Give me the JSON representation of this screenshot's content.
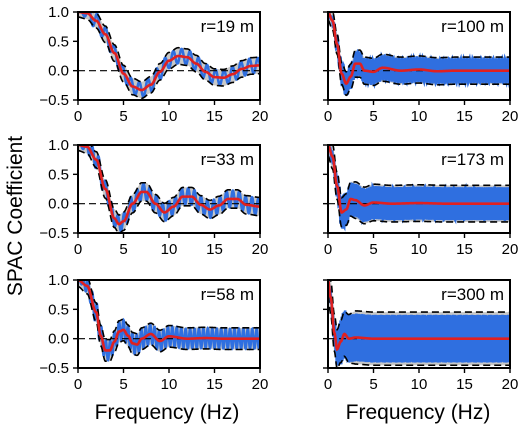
{
  "figure": {
    "ylabel": "SPAC Coefficient",
    "xlabel": "Frequency (Hz)"
  },
  "colors": {
    "band_fill": "#c8c8c8",
    "scatter": "#2f6fe0",
    "fit_line": "#e02020",
    "envelope": "#000000"
  },
  "chart_data": [
    {
      "type": "line",
      "panel": "r=19 m",
      "r_m": 19,
      "title": "r=19 m",
      "xlim": [
        0,
        20
      ],
      "ylim": [
        -0.5,
        1.0
      ],
      "xticks": [
        0,
        5,
        10,
        15,
        20
      ],
      "yticks": [
        -0.5,
        0.0,
        0.5,
        1.0
      ],
      "ytick_labels": [
        "−0.5",
        "0.0",
        "0.5",
        "1.0"
      ],
      "show_xticklabels": true,
      "show_yticklabels": true,
      "series": [],
      "fit_points": [
        [
          0,
          1.0
        ],
        [
          1,
          0.98
        ],
        [
          2,
          0.85
        ],
        [
          3,
          0.62
        ],
        [
          4,
          0.3
        ],
        [
          5,
          -0.05
        ],
        [
          6,
          -0.27
        ],
        [
          7,
          -0.33
        ],
        [
          8,
          -0.24
        ],
        [
          9,
          -0.02
        ],
        [
          10,
          0.17
        ],
        [
          11,
          0.25
        ],
        [
          12,
          0.23
        ],
        [
          13,
          0.12
        ],
        [
          14,
          -0.02
        ],
        [
          15,
          -0.11
        ],
        [
          16,
          -0.12
        ],
        [
          17,
          -0.06
        ],
        [
          18,
          0.03
        ],
        [
          19,
          0.08
        ],
        [
          20,
          0.09
        ]
      ]
    },
    {
      "type": "line",
      "panel": "r=100 m",
      "r_m": 100,
      "title": "r=100 m",
      "xlim": [
        0,
        20
      ],
      "ylim": [
        -0.5,
        1.0
      ],
      "xticks": [
        0,
        5,
        10,
        15,
        20
      ],
      "yticks": [
        -0.5,
        0.0,
        0.5,
        1.0
      ],
      "show_xticklabels": true,
      "show_yticklabels": false,
      "series": [],
      "fit_points": [
        [
          0,
          1.0
        ],
        [
          0.5,
          0.85
        ],
        [
          1,
          0.45
        ],
        [
          1.5,
          -0.05
        ],
        [
          2,
          -0.22
        ],
        [
          2.5,
          -0.1
        ],
        [
          3,
          0.12
        ],
        [
          3.5,
          0.12
        ],
        [
          4,
          0.0
        ],
        [
          5,
          -0.02
        ],
        [
          6,
          0.05
        ],
        [
          8,
          0.0
        ],
        [
          10,
          0.02
        ],
        [
          12,
          -0.01
        ],
        [
          14,
          0.0
        ],
        [
          16,
          0.0
        ],
        [
          18,
          0.0
        ],
        [
          20,
          0.0
        ]
      ]
    },
    {
      "type": "line",
      "panel": "r=33 m",
      "r_m": 33,
      "title": "r=33 m",
      "xlim": [
        0,
        20
      ],
      "ylim": [
        -0.5,
        1.0
      ],
      "xticks": [
        0,
        5,
        10,
        15,
        20
      ],
      "yticks": [
        -0.5,
        0.0,
        0.5,
        1.0
      ],
      "ytick_labels": [
        "−0.5",
        "0.0",
        "0.5",
        "1.0"
      ],
      "show_xticklabels": true,
      "show_yticklabels": true,
      "series": [],
      "fit_points": [
        [
          0,
          1.0
        ],
        [
          1,
          0.97
        ],
        [
          2,
          0.75
        ],
        [
          3,
          0.25
        ],
        [
          4,
          -0.25
        ],
        [
          4.5,
          -0.35
        ],
        [
          5,
          -0.3
        ],
        [
          6,
          0.0
        ],
        [
          7,
          0.2
        ],
        [
          7.5,
          0.2
        ],
        [
          8.5,
          0.0
        ],
        [
          9.5,
          -0.15
        ],
        [
          10.5,
          -0.05
        ],
        [
          11.5,
          0.12
        ],
        [
          12.5,
          0.12
        ],
        [
          13.5,
          -0.02
        ],
        [
          14.5,
          -0.1
        ],
        [
          15.5,
          -0.03
        ],
        [
          16.5,
          0.08
        ],
        [
          17.5,
          0.08
        ],
        [
          18.5,
          -0.02
        ],
        [
          20,
          -0.05
        ]
      ]
    },
    {
      "type": "line",
      "panel": "r=173 m",
      "r_m": 173,
      "title": "r=173 m",
      "xlim": [
        0,
        20
      ],
      "ylim": [
        -0.5,
        1.0
      ],
      "xticks": [
        0,
        5,
        10,
        15,
        20
      ],
      "yticks": [
        -0.5,
        0.0,
        0.5,
        1.0
      ],
      "show_xticklabels": true,
      "show_yticklabels": false,
      "series": [],
      "fit_points": [
        [
          0,
          1.0
        ],
        [
          0.5,
          0.8
        ],
        [
          1,
          0.3
        ],
        [
          1.5,
          -0.15
        ],
        [
          2,
          -0.1
        ],
        [
          2.5,
          0.08
        ],
        [
          3,
          0.06
        ],
        [
          4,
          -0.03
        ],
        [
          5,
          0.02
        ],
        [
          7,
          0.0
        ],
        [
          10,
          0.01
        ],
        [
          13,
          0.0
        ],
        [
          16,
          0.0
        ],
        [
          20,
          0.0
        ]
      ]
    },
    {
      "type": "line",
      "panel": "r=58 m",
      "r_m": 58,
      "title": "r=58 m",
      "xlim": [
        0,
        20
      ],
      "ylim": [
        -0.5,
        1.0
      ],
      "xticks": [
        0,
        5,
        10,
        15,
        20
      ],
      "yticks": [
        -0.5,
        0.0,
        0.5,
        1.0
      ],
      "ytick_labels": [
        "−0.5",
        "0.0",
        "0.5",
        "1.0"
      ],
      "show_xticklabels": true,
      "show_yticklabels": true,
      "series": [],
      "fit_points": [
        [
          0,
          1.0
        ],
        [
          1,
          0.9
        ],
        [
          2,
          0.45
        ],
        [
          2.5,
          0.05
        ],
        [
          3,
          -0.2
        ],
        [
          3.5,
          -0.2
        ],
        [
          4,
          -0.05
        ],
        [
          4.5,
          0.12
        ],
        [
          5,
          0.15
        ],
        [
          5.5,
          0.05
        ],
        [
          6,
          -0.08
        ],
        [
          6.5,
          -0.1
        ],
        [
          7,
          0.0
        ],
        [
          8,
          0.08
        ],
        [
          9,
          -0.04
        ],
        [
          10,
          0.04
        ],
        [
          12,
          0.0
        ],
        [
          14,
          0.01
        ],
        [
          16,
          0.0
        ],
        [
          18,
          0.0
        ],
        [
          20,
          0.0
        ]
      ]
    },
    {
      "type": "line",
      "panel": "r=300 m",
      "r_m": 300,
      "title": "r=300 m",
      "xlim": [
        0,
        20
      ],
      "ylim": [
        -0.5,
        1.0
      ],
      "xticks": [
        0,
        5,
        10,
        15,
        20
      ],
      "yticks": [
        -0.5,
        0.0,
        0.5,
        1.0
      ],
      "show_xticklabels": true,
      "show_yticklabels": false,
      "series": [],
      "fit_points": [
        [
          0,
          1.0
        ],
        [
          0.3,
          0.7
        ],
        [
          0.7,
          0.1
        ],
        [
          1,
          -0.18
        ],
        [
          1.4,
          -0.05
        ],
        [
          1.8,
          0.08
        ],
        [
          2.3,
          0.0
        ],
        [
          3,
          0.02
        ],
        [
          5,
          0.0
        ],
        [
          10,
          0.0
        ],
        [
          15,
          0.0
        ],
        [
          20,
          0.0
        ]
      ]
    }
  ]
}
